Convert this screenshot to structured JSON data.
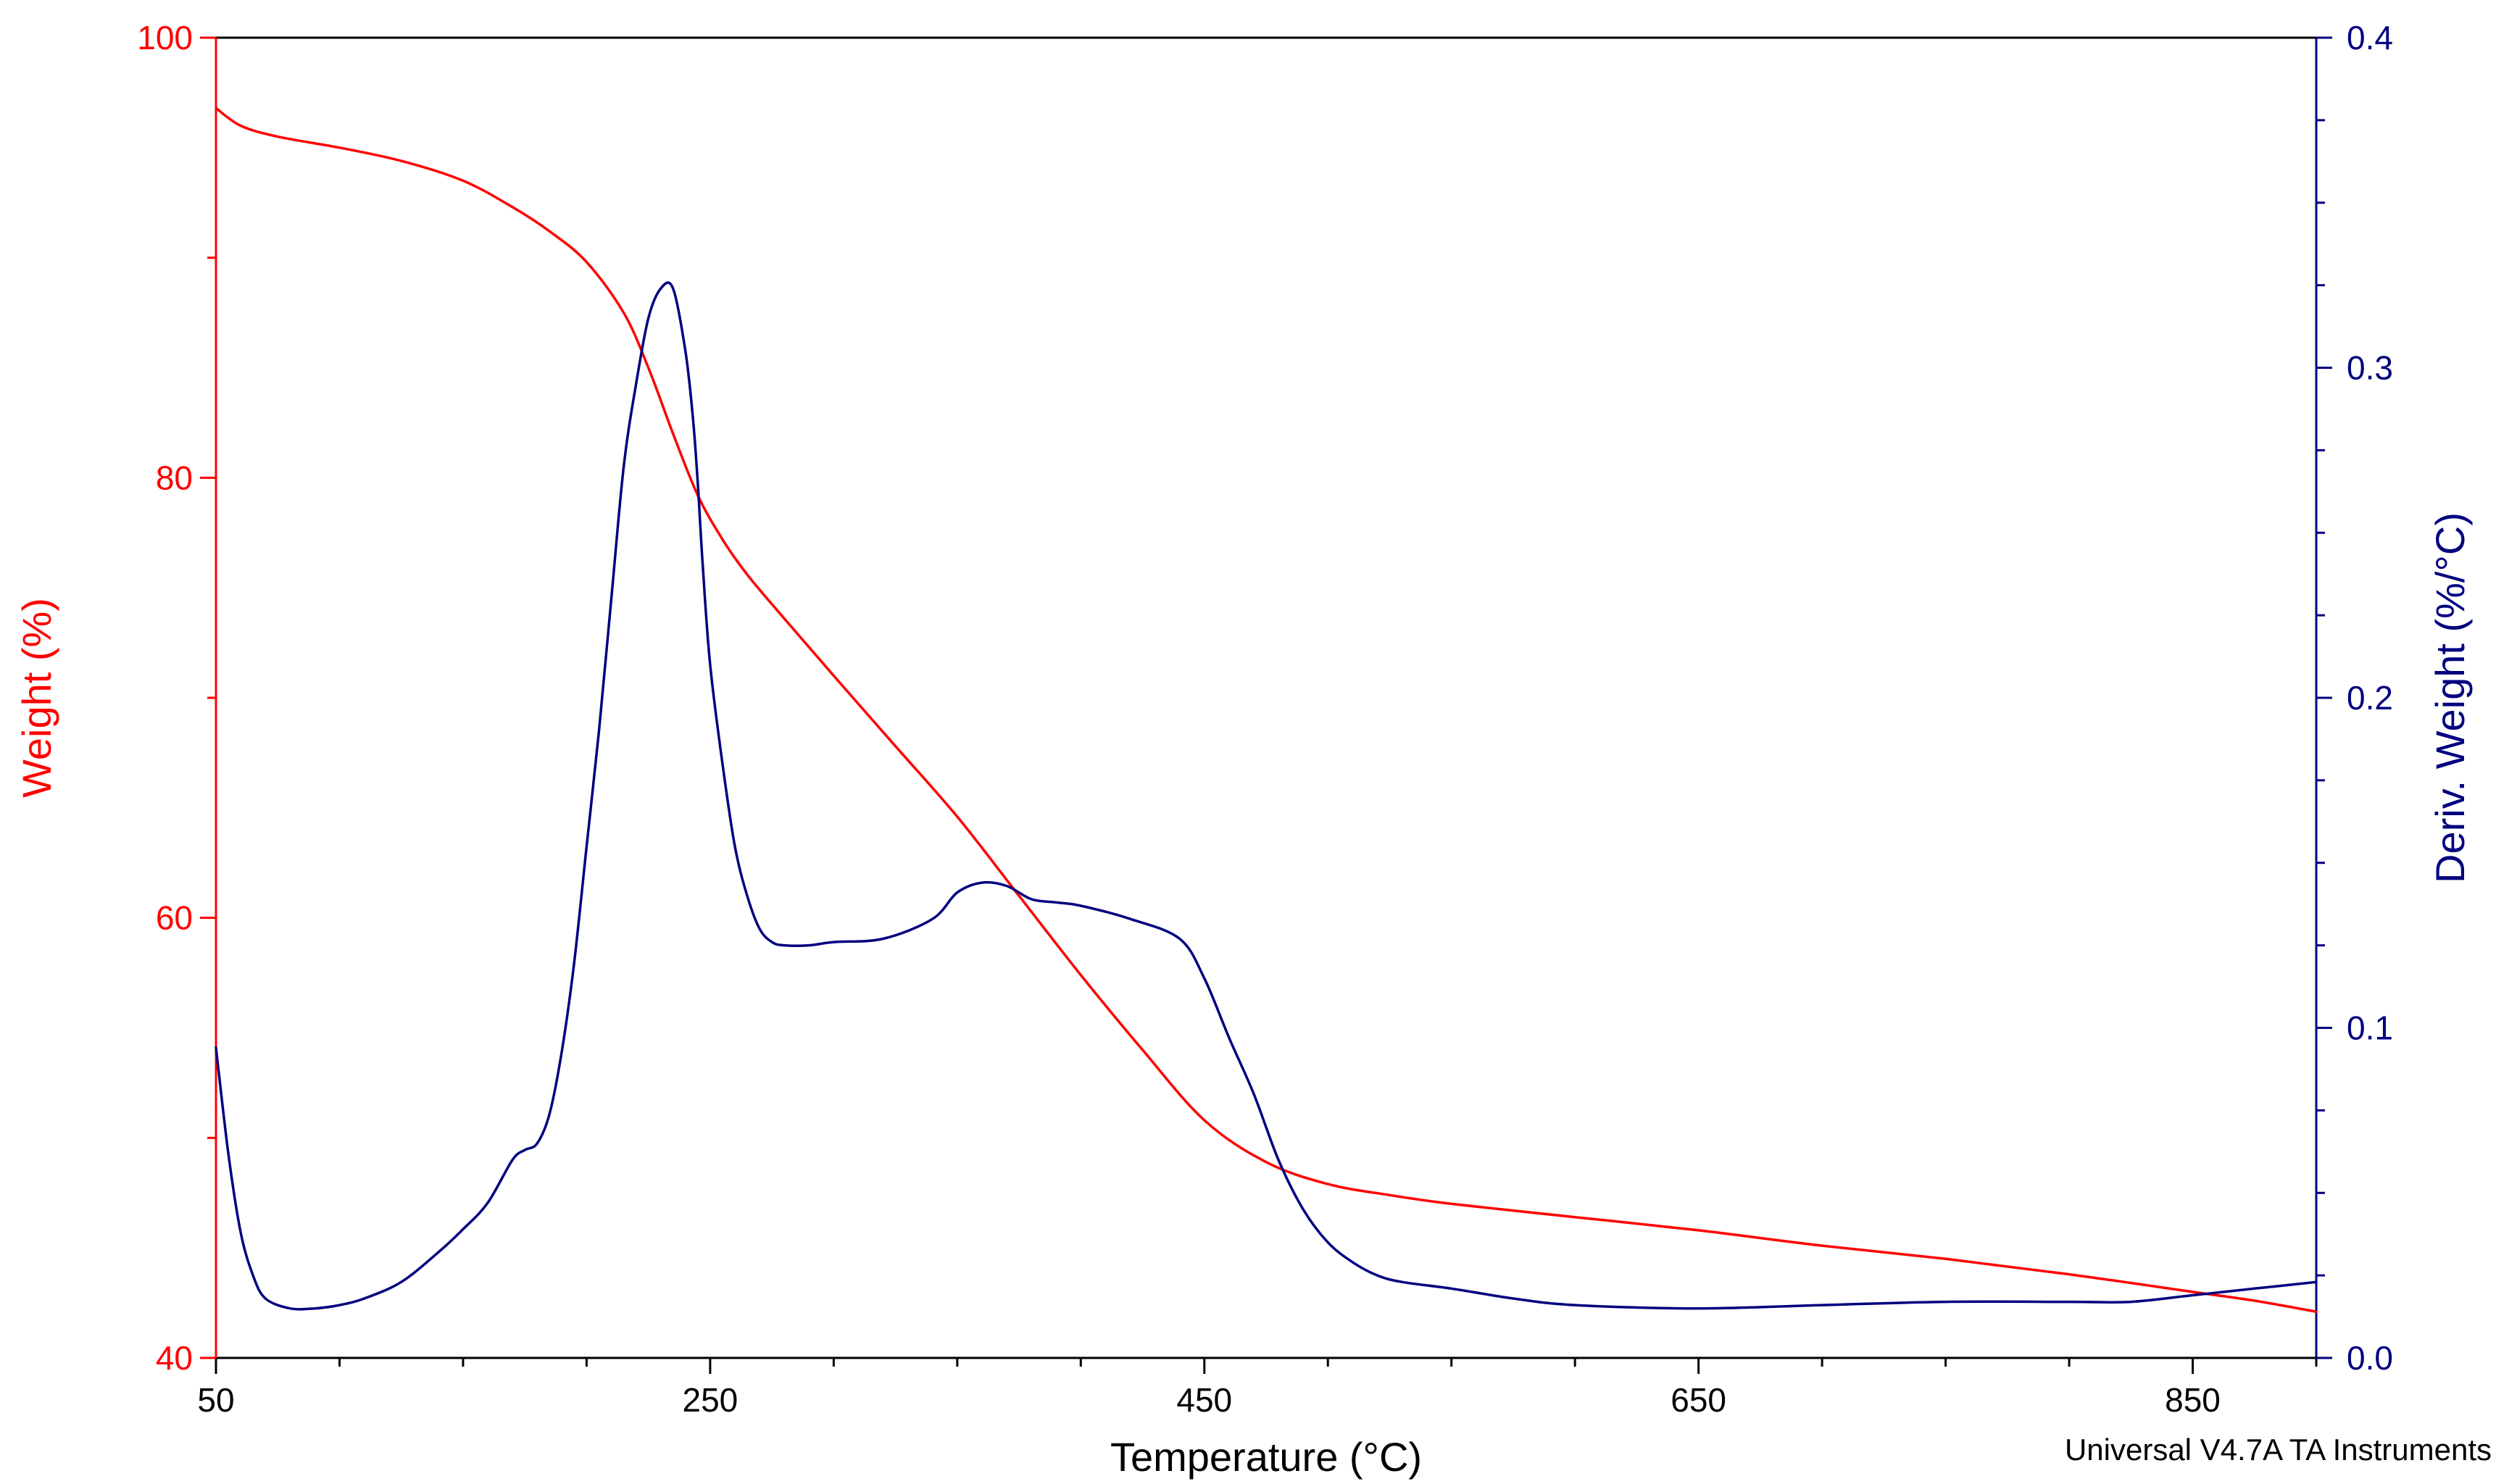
{
  "chart_data": {
    "type": "line",
    "xlabel": "Temperature (°C)",
    "ylabel_left": "Weight (%)",
    "ylabel_right": "Deriv. Weight (%/°C)",
    "xlim": [
      50,
      900
    ],
    "ylim_left": [
      40,
      100
    ],
    "ylim_right": [
      0.0,
      0.4
    ],
    "x_ticks": [
      "50",
      "250",
      "450",
      "650",
      "850"
    ],
    "y_left_ticks": [
      "40",
      "60",
      "80",
      "100"
    ],
    "y_right_ticks": [
      "0.0",
      "0.1",
      "0.2",
      "0.3",
      "0.4"
    ],
    "grid": false,
    "footnote": "Universal V4.7A TA Instruments",
    "colors": {
      "weight": "#ff0000",
      "deriv": "#00007f",
      "axes": "#000000"
    },
    "series": [
      {
        "axis": "left",
        "color": "#ff0000",
        "x": [
          50,
          60,
          75,
          100,
          125,
          150,
          170,
          185,
          200,
          215,
          225,
          235,
          245,
          255,
          265,
          280,
          300,
          325,
          350,
          375,
          400,
          425,
          450,
          475,
          500,
          525,
          550,
          600,
          650,
          700,
          750,
          800,
          850,
          875,
          900
        ],
        "y": [
          96.8,
          96.0,
          95.5,
          95.0,
          94.4,
          93.5,
          92.3,
          91.2,
          89.8,
          87.5,
          85.0,
          82.0,
          79.2,
          77.2,
          75.6,
          73.6,
          71.0,
          67.8,
          64.6,
          61.0,
          57.4,
          54.0,
          50.8,
          48.9,
          47.9,
          47.4,
          47.0,
          46.4,
          45.8,
          45.1,
          44.5,
          43.8,
          43.0,
          42.6,
          42.1
        ]
      },
      {
        "axis": "right",
        "color": "#00007f",
        "x": [
          50,
          55,
          60,
          65,
          70,
          80,
          90,
          100,
          110,
          125,
          140,
          150,
          160,
          170,
          175,
          180,
          185,
          190,
          195,
          200,
          205,
          210,
          215,
          220,
          225,
          230,
          235,
          240,
          243,
          245,
          247,
          250,
          255,
          260,
          265,
          270,
          275,
          280,
          290,
          300,
          320,
          340,
          350,
          360,
          370,
          380,
          390,
          400,
          420,
          440,
          450,
          460,
          470,
          480,
          490,
          500,
          510,
          520,
          530,
          550,
          575,
          600,
          650,
          700,
          750,
          800,
          825,
          850,
          875,
          900
        ],
        "y": [
          0.094,
          0.062,
          0.038,
          0.025,
          0.018,
          0.015,
          0.015,
          0.016,
          0.018,
          0.023,
          0.032,
          0.039,
          0.047,
          0.06,
          0.063,
          0.065,
          0.074,
          0.093,
          0.12,
          0.155,
          0.19,
          0.23,
          0.27,
          0.295,
          0.315,
          0.324,
          0.324,
          0.305,
          0.285,
          0.265,
          0.24,
          0.21,
          0.18,
          0.155,
          0.14,
          0.13,
          0.126,
          0.125,
          0.125,
          0.126,
          0.127,
          0.133,
          0.141,
          0.144,
          0.143,
          0.139,
          0.138,
          0.137,
          0.133,
          0.127,
          0.115,
          0.097,
          0.08,
          0.06,
          0.045,
          0.035,
          0.029,
          0.025,
          0.023,
          0.021,
          0.018,
          0.016,
          0.015,
          0.016,
          0.017,
          0.017,
          0.017,
          0.019,
          0.021,
          0.023
        ]
      }
    ]
  }
}
